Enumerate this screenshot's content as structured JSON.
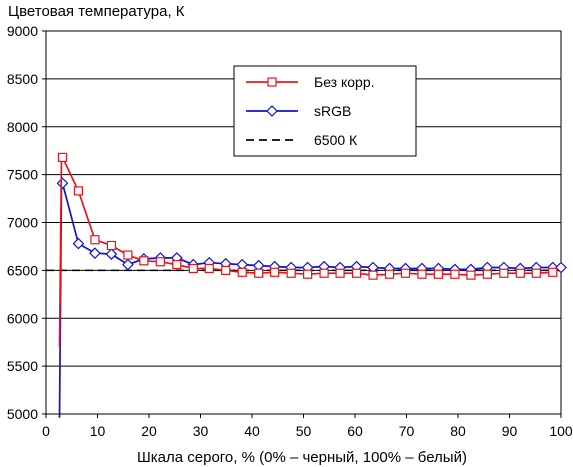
{
  "chart_data": {
    "type": "line",
    "title": "",
    "ylabel": "Цветовая температура, К",
    "xlabel": "Шкала серого, % (0% – черный, 100% – белый)",
    "xlim": [
      0,
      100
    ],
    "ylim": [
      5000,
      9000
    ],
    "xticks": [
      0,
      10,
      20,
      30,
      40,
      50,
      60,
      70,
      80,
      90,
      100
    ],
    "yticks": [
      5000,
      5500,
      6000,
      6500,
      7000,
      7500,
      8000,
      8500,
      9000
    ],
    "x_tick_labels": [
      "0",
      "10",
      "20",
      "30",
      "40",
      "50",
      "60",
      "70",
      "80",
      "90",
      "100"
    ],
    "y_tick_labels": [
      "5000",
      "5500",
      "6000",
      "6500",
      "7000",
      "7500",
      "8000",
      "8500",
      "9000"
    ],
    "grid": "horizontal",
    "legend_position": "top-right",
    "series": [
      {
        "name": "Без корр.",
        "color": "#e8141a",
        "marker": "square",
        "x": [
          3.2,
          6.3,
          9.5,
          12.7,
          15.9,
          19.0,
          22.2,
          25.4,
          28.6,
          31.7,
          34.9,
          38.1,
          41.3,
          44.4,
          47.6,
          50.8,
          54.0,
          57.1,
          60.3,
          63.5,
          66.7,
          69.8,
          73.0,
          76.2,
          79.4,
          82.5,
          85.7,
          88.9,
          92.1,
          95.2,
          98.4
        ],
        "y": [
          7680,
          7330,
          6820,
          6760,
          6660,
          6600,
          6590,
          6560,
          6520,
          6520,
          6500,
          6480,
          6470,
          6480,
          6470,
          6460,
          6470,
          6470,
          6470,
          6450,
          6460,
          6470,
          6460,
          6460,
          6460,
          6450,
          6460,
          6470,
          6470,
          6470,
          6480
        ],
        "line_prefix_y": [
          5700,
          7680
        ]
      },
      {
        "name": "sRGB",
        "color": "#1010d0",
        "marker": "diamond",
        "x": [
          3.2,
          6.3,
          9.5,
          12.7,
          15.9,
          19.0,
          22.2,
          25.4,
          28.6,
          31.7,
          34.9,
          38.1,
          41.3,
          44.4,
          47.6,
          50.8,
          54.0,
          57.1,
          60.3,
          63.5,
          66.7,
          69.8,
          73.0,
          76.2,
          79.4,
          82.5,
          85.7,
          88.9,
          92.1,
          95.2,
          98.4,
          100
        ],
        "y": [
          7410,
          6780,
          6680,
          6670,
          6560,
          6620,
          6630,
          6630,
          6560,
          6580,
          6570,
          6560,
          6550,
          6540,
          6530,
          6530,
          6540,
          6530,
          6540,
          6530,
          6520,
          6520,
          6520,
          6520,
          6510,
          6510,
          6530,
          6530,
          6520,
          6530,
          6530,
          6530
        ],
        "line_prefix_y": [
          4960,
          7410
        ]
      },
      {
        "name": "6500 К",
        "color": "#000000",
        "style": "dashed",
        "x": [
          0,
          100
        ],
        "y": [
          6500,
          6500
        ]
      }
    ]
  }
}
